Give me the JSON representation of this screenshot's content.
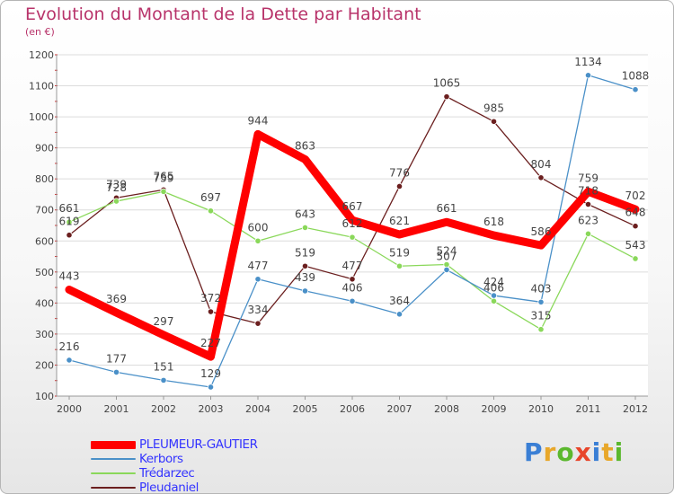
{
  "title": "Evolution du Montant de la Dette par Habitant",
  "subtitle": "(en €)",
  "logo": {
    "letters": [
      "P",
      "r",
      "o",
      "x",
      "i",
      "t",
      "i"
    ],
    "colors": [
      "#3a7fd5",
      "#e8a72a",
      "#5bb82e",
      "#e8452a",
      "#3a7fd5",
      "#e8a72a",
      "#5bb82e"
    ]
  },
  "chart_data": {
    "type": "line",
    "title": "Evolution du Montant de la Dette par Habitant",
    "ylabel": "(en €)",
    "xlabel": "",
    "x": [
      "2000",
      "2001",
      "2002",
      "2003",
      "2004",
      "2005",
      "2006",
      "2007",
      "2008",
      "2009",
      "2010",
      "2011",
      "2012"
    ],
    "ylim": [
      100,
      1200
    ],
    "yticks": [
      100,
      200,
      300,
      400,
      500,
      600,
      700,
      800,
      900,
      1000,
      1100,
      1200
    ],
    "grid": "horizontal",
    "legend_position": "bottom-left",
    "series": [
      {
        "name": "PLEUMEUR-GAUTIER",
        "color": "#ff0000",
        "values": [
          443,
          369,
          297,
          227,
          944,
          863,
          667,
          621,
          661,
          618,
          586,
          759,
          702
        ]
      },
      {
        "name": "Kerbors",
        "color": "#4a90c8",
        "values": [
          216,
          177,
          151,
          129,
          477,
          439,
          406,
          364,
          507,
          424,
          403,
          1134,
          1088
        ]
      },
      {
        "name": "Trédarzec",
        "color": "#8ad85a",
        "values": [
          661,
          728,
          759,
          697,
          600,
          643,
          612,
          519,
          524,
          406,
          315,
          623,
          543
        ]
      },
      {
        "name": "Pleudaniel",
        "color": "#6b1f1f",
        "values": [
          619,
          739,
          765,
          372,
          334,
          519,
          477,
          776,
          1065,
          985,
          804,
          718,
          648
        ]
      }
    ]
  }
}
